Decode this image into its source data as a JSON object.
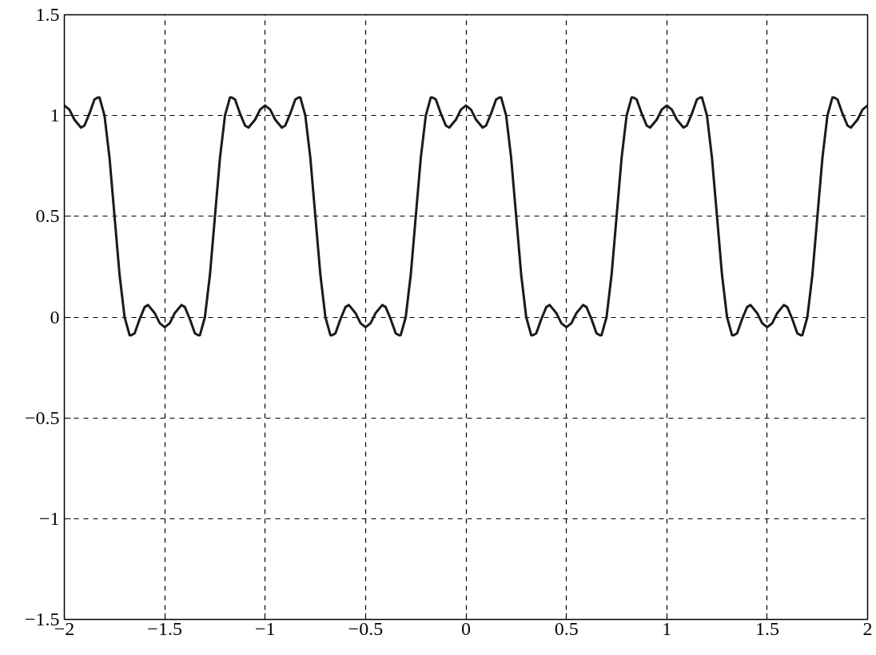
{
  "chart_data": {
    "type": "line",
    "x": [
      -2,
      -1.975,
      -1.95,
      -1.917,
      -1.9,
      -1.875,
      -1.85,
      -1.833,
      -1.825,
      -1.8,
      -1.775,
      -1.75,
      -1.725,
      -1.7,
      -1.675,
      -1.667,
      -1.65,
      -1.625,
      -1.6,
      -1.583,
      -1.55,
      -1.525,
      -1.5,
      -1.475,
      -1.45,
      -1.417,
      -1.4,
      -1.375,
      -1.35,
      -1.333,
      -1.325,
      -1.3,
      -1.275,
      -1.25,
      -1.225,
      -1.2,
      -1.175,
      -1.167,
      -1.15,
      -1.125,
      -1.1,
      -1.083,
      -1.05,
      -1.025,
      -1,
      -0.975,
      -0.95,
      -0.917,
      -0.9,
      -0.875,
      -0.85,
      -0.833,
      -0.825,
      -0.8,
      -0.775,
      -0.75,
      -0.725,
      -0.7,
      -0.675,
      -0.667,
      -0.65,
      -0.625,
      -0.6,
      -0.583,
      -0.55,
      -0.525,
      -0.5,
      -0.475,
      -0.45,
      -0.417,
      -0.4,
      -0.375,
      -0.35,
      -0.333,
      -0.325,
      -0.3,
      -0.275,
      -0.25,
      -0.225,
      -0.2,
      -0.175,
      -0.167,
      -0.15,
      -0.125,
      -0.1,
      -0.083,
      -0.05,
      -0.025,
      0,
      0.025,
      0.05,
      0.083,
      0.1,
      0.125,
      0.15,
      0.167,
      0.175,
      0.2,
      0.225,
      0.25,
      0.275,
      0.3,
      0.325,
      0.333,
      0.35,
      0.375,
      0.4,
      0.417,
      0.45,
      0.475,
      0.5,
      0.525,
      0.55,
      0.583,
      0.6,
      0.625,
      0.65,
      0.667,
      0.675,
      0.7,
      0.725,
      0.75,
      0.775,
      0.8,
      0.825,
      0.833,
      0.85,
      0.875,
      0.9,
      0.917,
      0.95,
      0.975,
      1,
      1.025,
      1.05,
      1.083,
      1.1,
      1.125,
      1.15,
      1.167,
      1.175,
      1.2,
      1.225,
      1.25,
      1.275,
      1.3,
      1.325,
      1.333,
      1.35,
      1.375,
      1.4,
      1.417,
      1.45,
      1.475,
      1.5,
      1.525,
      1.55,
      1.583,
      1.6,
      1.625,
      1.65,
      1.667,
      1.675,
      1.7,
      1.725,
      1.75,
      1.775,
      1.8,
      1.825,
      1.833,
      1.85,
      1.875,
      1.9,
      1.917,
      1.95,
      1.975,
      2
    ],
    "series": [
      {
        "color": "#1a1a1a",
        "values": [
          1.05,
          1.03,
          0.98,
          0.94,
          0.95,
          1.01,
          1.08,
          1.09,
          1.09,
          1.0,
          0.79,
          0.5,
          0.21,
          0.0,
          -0.09,
          -0.09,
          -0.08,
          -0.01,
          0.05,
          0.06,
          0.02,
          -0.03,
          -0.05,
          -0.03,
          0.02,
          0.06,
          0.05,
          -0.01,
          -0.08,
          -0.09,
          -0.09,
          0.0,
          0.21,
          0.5,
          0.79,
          1.0,
          1.09,
          1.09,
          1.08,
          1.01,
          0.95,
          0.94,
          0.98,
          1.03,
          1.05,
          1.03,
          0.98,
          0.94,
          0.95,
          1.01,
          1.08,
          1.09,
          1.09,
          1.0,
          0.79,
          0.5,
          0.21,
          0.0,
          -0.09,
          -0.09,
          -0.08,
          -0.01,
          0.05,
          0.06,
          0.02,
          -0.03,
          -0.05,
          -0.03,
          0.02,
          0.06,
          0.05,
          -0.01,
          -0.08,
          -0.09,
          -0.09,
          0.0,
          0.21,
          0.5,
          0.79,
          1.0,
          1.09,
          1.09,
          1.08,
          1.01,
          0.95,
          0.94,
          0.98,
          1.03,
          1.05,
          1.03,
          0.98,
          0.94,
          0.95,
          1.01,
          1.08,
          1.09,
          1.09,
          1.0,
          0.79,
          0.5,
          0.21,
          0.0,
          -0.09,
          -0.09,
          -0.08,
          -0.01,
          0.05,
          0.06,
          0.02,
          -0.03,
          -0.05,
          -0.03,
          0.02,
          0.06,
          0.05,
          -0.01,
          -0.08,
          -0.09,
          -0.09,
          0.0,
          0.21,
          0.5,
          0.79,
          1.0,
          1.09,
          1.09,
          1.08,
          1.01,
          0.95,
          0.94,
          0.98,
          1.03,
          1.05,
          1.03,
          0.98,
          0.94,
          0.95,
          1.01,
          1.08,
          1.09,
          1.09,
          1.0,
          0.79,
          0.5,
          0.21,
          0.0,
          -0.09,
          -0.09,
          -0.08,
          -0.01,
          0.05,
          0.06,
          0.02,
          -0.03,
          -0.05,
          -0.03,
          0.02,
          0.06,
          0.05,
          -0.01,
          -0.08,
          -0.09,
          -0.09,
          0.0,
          0.21,
          0.5,
          0.79,
          1.0,
          1.09,
          1.09,
          1.08,
          1.01,
          0.95,
          0.94,
          0.98,
          1.03,
          1.05
        ]
      }
    ],
    "xlim": [
      -2,
      2
    ],
    "ylim": [
      -1.5,
      1.5
    ],
    "xticks": [
      {
        "value": -2,
        "label": "−2"
      },
      {
        "value": -1.5,
        "label": "−1.5"
      },
      {
        "value": -1,
        "label": "−1"
      },
      {
        "value": -0.5,
        "label": "−0.5"
      },
      0,
      0.5,
      1,
      1.5,
      2
    ],
    "yticks": [
      {
        "value": -1.5,
        "label": "−1.5"
      },
      {
        "value": -1,
        "label": "−1"
      },
      {
        "value": -0.5,
        "label": "−0.5"
      },
      0,
      0.5,
      1,
      1.5
    ],
    "grid": true,
    "line_style": "solid",
    "marker": "none"
  }
}
